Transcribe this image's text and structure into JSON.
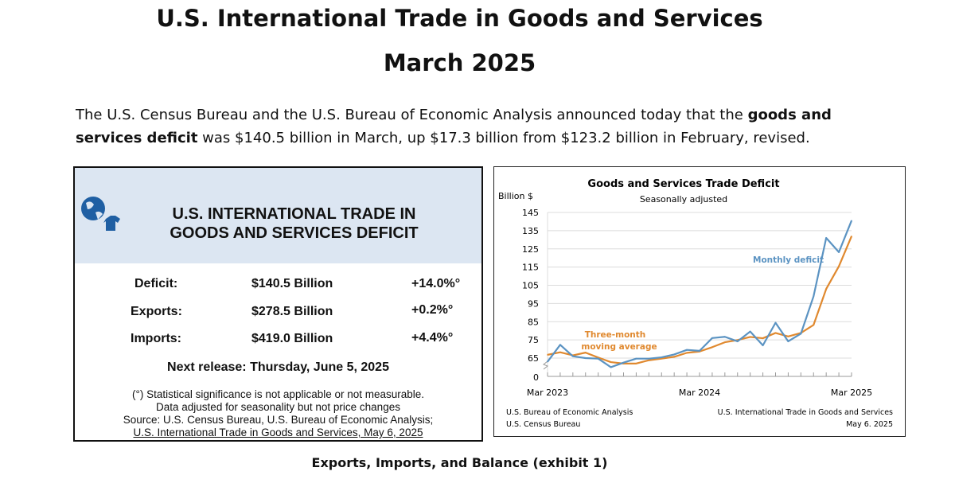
{
  "header": {
    "title": "U.S. International Trade in Goods and Services",
    "subtitle": "March 2025"
  },
  "intro": {
    "part1": "The U.S. Census Bureau and the U.S. Bureau of Economic Analysis announced today that the ",
    "bold": "goods and services deficit",
    "part2": " was $140.5 billion in March, up $17.3 billion from $123.2 billion in February, revised."
  },
  "summary": {
    "title_line1": "U.S. INTERNATIONAL TRADE IN",
    "title_line2": "GOODS AND SERVICES DEFICIT",
    "rows": [
      {
        "label": "Deficit:",
        "value": "$140.5 Billion",
        "change": "+14.0%°"
      },
      {
        "label": "Exports:",
        "value": "$278.5 Billion",
        "change": "+0.2%°"
      },
      {
        "label": "Imports:",
        "value": "$419.0 Billion",
        "change": "+4.4%°"
      }
    ],
    "next_release": "Next release: Thursday, June 5, 2025",
    "notes": [
      "(°) Statistical significance is not applicable or not measurable.",
      "Data adjusted for seasonality but not price changes",
      "Source: U.S. Census Bureau, U.S. Bureau of Economic Analysis;",
      "U.S. International Trade in Goods and Services, May 6, 2025"
    ],
    "icon": "globe-shirt-icon"
  },
  "chart_data": {
    "type": "line",
    "title": "Goods and Services Trade Deficit",
    "subtitle": "Seasonally adjusted",
    "ylabel": "Billion $",
    "ylim": [
      65,
      145
    ],
    "yticks": [
      145,
      135,
      125,
      115,
      105,
      95,
      85,
      75,
      65
    ],
    "ybreak_label": "0",
    "xtick_labels": [
      "Mar 2023",
      "Mar 2024",
      "Mar 2025"
    ],
    "x": [
      "Mar 2023",
      "Apr 2023",
      "May 2023",
      "Jun 2023",
      "Jul 2023",
      "Aug 2023",
      "Sep 2023",
      "Oct 2023",
      "Nov 2023",
      "Dec 2023",
      "Jan 2024",
      "Feb 2024",
      "Mar 2024",
      "Apr 2024",
      "May 2024",
      "Jun 2024",
      "Jul 2024",
      "Aug 2024",
      "Sep 2024",
      "Oct 2024",
      "Nov 2024",
      "Dec 2024",
      "Jan 2025",
      "Feb 2025",
      "Mar 2025"
    ],
    "series": [
      {
        "name": "Monthly deficit",
        "color": "#5b93c2",
        "values": [
          63,
          72.3,
          66,
          65,
          64.7,
          60,
          62.5,
          64.7,
          64.7,
          65.4,
          67,
          69.5,
          69,
          76,
          76.7,
          74.2,
          79.6,
          72,
          84.4,
          74.2,
          78.4,
          98.9,
          131,
          123.2,
          140.5
        ]
      },
      {
        "name": "Three-month moving average",
        "label_line1": "Three-month",
        "label_line2": "moving average",
        "color": "#e0892f",
        "values": [
          66.8,
          68.2,
          66.5,
          68,
          65.3,
          62.8,
          62,
          62,
          63.8,
          64.7,
          65.7,
          67.9,
          68.6,
          71,
          73.7,
          74.9,
          76.6,
          75.9,
          78.8,
          76.9,
          78.8,
          83.2,
          103,
          115.4,
          131.9
        ]
      }
    ],
    "source_left": [
      "U.S. Bureau of Economic Analysis",
      "U.S. Census Bureau"
    ],
    "source_right": [
      "U.S. International Trade in Goods and Services",
      "May 6. 2025"
    ]
  },
  "exhibit": "Exports, Imports, and Balance (exhibit 1)"
}
